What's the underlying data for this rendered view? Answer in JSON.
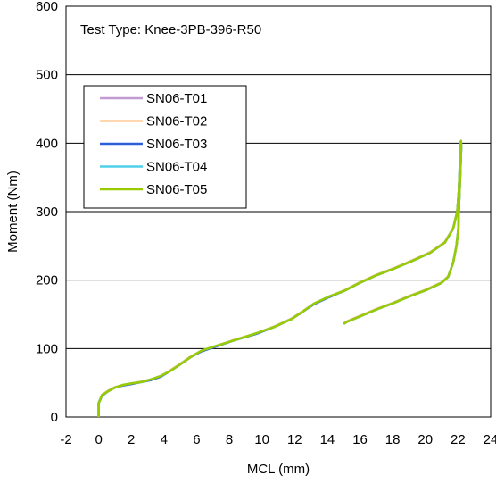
{
  "chart_data": {
    "type": "line",
    "title": "",
    "annotation": "Test Type: Knee-3PB-396-R50",
    "xlabel": "MCL (mm)",
    "ylabel": "Moment (Nm)",
    "xlim": [
      -2,
      24
    ],
    "ylim": [
      0,
      600
    ],
    "x_ticks": [
      "-2",
      "0",
      "2",
      "4",
      "6",
      "8",
      "10",
      "12",
      "14",
      "16",
      "18",
      "20",
      "22",
      "24"
    ],
    "y_ticks": [
      "0",
      "100",
      "200",
      "300",
      "400",
      "500",
      "600"
    ],
    "grid": "horizontal",
    "legend_position": "upper-left",
    "series": [
      {
        "name": "SN06-T01",
        "color": "#c39bd3",
        "points": [
          [
            0,
            0
          ],
          [
            0,
            20
          ],
          [
            0.2,
            32
          ],
          [
            0.6,
            38
          ],
          [
            1,
            43
          ],
          [
            1.5,
            47
          ],
          [
            2,
            49
          ],
          [
            2.6,
            51
          ],
          [
            3.2,
            55
          ],
          [
            3.8,
            60
          ],
          [
            4.3,
            66
          ],
          [
            5,
            77
          ],
          [
            5.6,
            87
          ],
          [
            6.3,
            97
          ],
          [
            7.2,
            104
          ],
          [
            8.3,
            112
          ],
          [
            9.6,
            122
          ],
          [
            10.8,
            132
          ],
          [
            11.8,
            143
          ],
          [
            12.5,
            154
          ],
          [
            13.2,
            166
          ],
          [
            14.1,
            176
          ],
          [
            15.1,
            185
          ],
          [
            15.9,
            195
          ],
          [
            17,
            207
          ],
          [
            18.1,
            217
          ],
          [
            19.2,
            228
          ],
          [
            20.3,
            240
          ],
          [
            21.2,
            255
          ],
          [
            21.7,
            275
          ],
          [
            21.95,
            300
          ],
          [
            22.05,
            330
          ],
          [
            22.1,
            360
          ],
          [
            22.12,
            395
          ],
          [
            22.18,
            403
          ],
          [
            22.2,
            395
          ],
          [
            22.15,
            360
          ],
          [
            22.1,
            330
          ],
          [
            22.05,
            300
          ],
          [
            22.02,
            275
          ],
          [
            21.9,
            250
          ],
          [
            21.7,
            225
          ],
          [
            21.4,
            205
          ],
          [
            21,
            196
          ],
          [
            20,
            185
          ],
          [
            19,
            176
          ],
          [
            18,
            166
          ],
          [
            17,
            157
          ],
          [
            16,
            147
          ],
          [
            15.2,
            139
          ],
          [
            15,
            136
          ]
        ]
      },
      {
        "name": "SN06-T02",
        "color": "#ffcc99",
        "points": [
          [
            0,
            0
          ],
          [
            0,
            21
          ],
          [
            0.2,
            33
          ],
          [
            0.6,
            39
          ],
          [
            1,
            44
          ],
          [
            1.5,
            47
          ],
          [
            2,
            49
          ],
          [
            2.6,
            52
          ],
          [
            3.2,
            55
          ],
          [
            3.8,
            60
          ],
          [
            4.3,
            67
          ],
          [
            5,
            78
          ],
          [
            5.6,
            88
          ],
          [
            6.3,
            97
          ],
          [
            7.2,
            104
          ],
          [
            8.3,
            113
          ],
          [
            9.6,
            122
          ],
          [
            10.8,
            133
          ],
          [
            11.8,
            144
          ],
          [
            12.5,
            155
          ],
          [
            13.2,
            166
          ],
          [
            14.1,
            176
          ],
          [
            15.1,
            186
          ],
          [
            15.9,
            196
          ],
          [
            17,
            208
          ],
          [
            18.1,
            218
          ],
          [
            19.2,
            229
          ],
          [
            20.3,
            241
          ],
          [
            21.2,
            256
          ],
          [
            21.7,
            276
          ],
          [
            21.95,
            301
          ],
          [
            22.05,
            331
          ],
          [
            22.1,
            361
          ],
          [
            22.12,
            396
          ],
          [
            22.18,
            404
          ],
          [
            22.2,
            396
          ],
          [
            22.15,
            361
          ],
          [
            22.1,
            331
          ],
          [
            22.05,
            301
          ],
          [
            22.02,
            276
          ],
          [
            21.9,
            251
          ],
          [
            21.7,
            226
          ],
          [
            21.4,
            206
          ],
          [
            21,
            197
          ],
          [
            20,
            186
          ],
          [
            19,
            177
          ],
          [
            18,
            167
          ],
          [
            17,
            158
          ],
          [
            16,
            148
          ],
          [
            15.2,
            140
          ],
          [
            15,
            137
          ]
        ]
      },
      {
        "name": "SN06-T03",
        "color": "#2e5fd8",
        "points": [
          [
            0,
            0
          ],
          [
            0,
            20
          ],
          [
            0.2,
            31
          ],
          [
            0.6,
            38
          ],
          [
            1,
            43
          ],
          [
            1.5,
            46
          ],
          [
            2,
            48
          ],
          [
            2.6,
            51
          ],
          [
            3.2,
            54
          ],
          [
            3.8,
            59
          ],
          [
            4.3,
            66
          ],
          [
            5,
            77
          ],
          [
            5.6,
            87
          ],
          [
            6.3,
            96
          ],
          [
            7.2,
            103
          ],
          [
            8.3,
            112
          ],
          [
            9.6,
            121
          ],
          [
            10.8,
            132
          ],
          [
            11.8,
            143
          ],
          [
            12.5,
            154
          ],
          [
            13.2,
            165
          ],
          [
            14.1,
            175
          ],
          [
            15.1,
            185
          ],
          [
            15.9,
            195
          ],
          [
            17,
            207
          ],
          [
            18.1,
            217
          ],
          [
            19.2,
            228
          ],
          [
            20.3,
            240
          ],
          [
            21.2,
            255
          ],
          [
            21.7,
            275
          ],
          [
            21.95,
            300
          ],
          [
            22.05,
            330
          ],
          [
            22.1,
            360
          ],
          [
            22.12,
            394
          ],
          [
            22.18,
            402
          ],
          [
            22.2,
            394
          ],
          [
            22.15,
            360
          ],
          [
            22.1,
            330
          ],
          [
            22.05,
            300
          ],
          [
            22.02,
            275
          ],
          [
            21.9,
            250
          ],
          [
            21.7,
            225
          ],
          [
            21.4,
            205
          ],
          [
            21,
            196
          ],
          [
            20,
            185
          ],
          [
            19,
            176
          ],
          [
            18,
            166
          ],
          [
            17,
            157
          ],
          [
            16,
            147
          ],
          [
            15.2,
            139
          ],
          [
            15,
            136
          ]
        ]
      },
      {
        "name": "SN06-T04",
        "color": "#4fd0e8",
        "points": [
          [
            0,
            0
          ],
          [
            0,
            21
          ],
          [
            0.2,
            32
          ],
          [
            0.6,
            38
          ],
          [
            1,
            43
          ],
          [
            1.5,
            47
          ],
          [
            2,
            49
          ],
          [
            2.6,
            51
          ],
          [
            3.2,
            55
          ],
          [
            3.8,
            60
          ],
          [
            4.3,
            66
          ],
          [
            5,
            77
          ],
          [
            5.6,
            87
          ],
          [
            6.3,
            97
          ],
          [
            7.2,
            104
          ],
          [
            8.3,
            112
          ],
          [
            9.6,
            122
          ],
          [
            10.8,
            132
          ],
          [
            11.8,
            143
          ],
          [
            12.5,
            154
          ],
          [
            13.2,
            166
          ],
          [
            14.1,
            176
          ],
          [
            15.1,
            185
          ],
          [
            15.9,
            195
          ],
          [
            17,
            207
          ],
          [
            18.1,
            217
          ],
          [
            19.2,
            228
          ],
          [
            20.3,
            240
          ],
          [
            21.2,
            255
          ],
          [
            21.7,
            275
          ],
          [
            21.95,
            300
          ],
          [
            22.05,
            330
          ],
          [
            22.1,
            360
          ],
          [
            22.12,
            395
          ],
          [
            22.18,
            403
          ],
          [
            22.2,
            395
          ],
          [
            22.15,
            360
          ],
          [
            22.1,
            330
          ],
          [
            22.05,
            300
          ],
          [
            22.02,
            275
          ],
          [
            21.9,
            250
          ],
          [
            21.7,
            225
          ],
          [
            21.4,
            205
          ],
          [
            21,
            196
          ],
          [
            20,
            185
          ],
          [
            19,
            176
          ],
          [
            18,
            166
          ],
          [
            17,
            157
          ],
          [
            16,
            147
          ],
          [
            15.2,
            139
          ],
          [
            15,
            136
          ]
        ]
      },
      {
        "name": "SN06-T05",
        "color": "#99cc00",
        "points": [
          [
            0,
            0
          ],
          [
            0,
            20
          ],
          [
            0.2,
            32
          ],
          [
            0.6,
            38
          ],
          [
            1,
            43
          ],
          [
            1.5,
            47
          ],
          [
            2,
            49
          ],
          [
            2.6,
            51
          ],
          [
            3.2,
            55
          ],
          [
            3.8,
            60
          ],
          [
            4.3,
            66
          ],
          [
            5,
            77
          ],
          [
            5.6,
            87
          ],
          [
            6.3,
            97
          ],
          [
            7.2,
            104
          ],
          [
            8.3,
            112
          ],
          [
            9.6,
            122
          ],
          [
            10.8,
            132
          ],
          [
            11.8,
            143
          ],
          [
            12.5,
            154
          ],
          [
            13.2,
            166
          ],
          [
            14.1,
            176
          ],
          [
            15.1,
            185
          ],
          [
            15.9,
            195
          ],
          [
            17,
            207
          ],
          [
            18.1,
            217
          ],
          [
            19.2,
            228
          ],
          [
            20.3,
            240
          ],
          [
            21.2,
            255
          ],
          [
            21.7,
            275
          ],
          [
            21.95,
            300
          ],
          [
            22.05,
            330
          ],
          [
            22.1,
            360
          ],
          [
            22.12,
            395
          ],
          [
            22.18,
            403
          ],
          [
            22.2,
            395
          ],
          [
            22.15,
            360
          ],
          [
            22.1,
            330
          ],
          [
            22.05,
            300
          ],
          [
            22.02,
            275
          ],
          [
            21.9,
            250
          ],
          [
            21.7,
            225
          ],
          [
            21.4,
            205
          ],
          [
            21,
            196
          ],
          [
            20,
            185
          ],
          [
            19,
            176
          ],
          [
            18,
            166
          ],
          [
            17,
            157
          ],
          [
            16,
            147
          ],
          [
            15.2,
            139
          ],
          [
            15,
            136
          ]
        ]
      }
    ]
  }
}
